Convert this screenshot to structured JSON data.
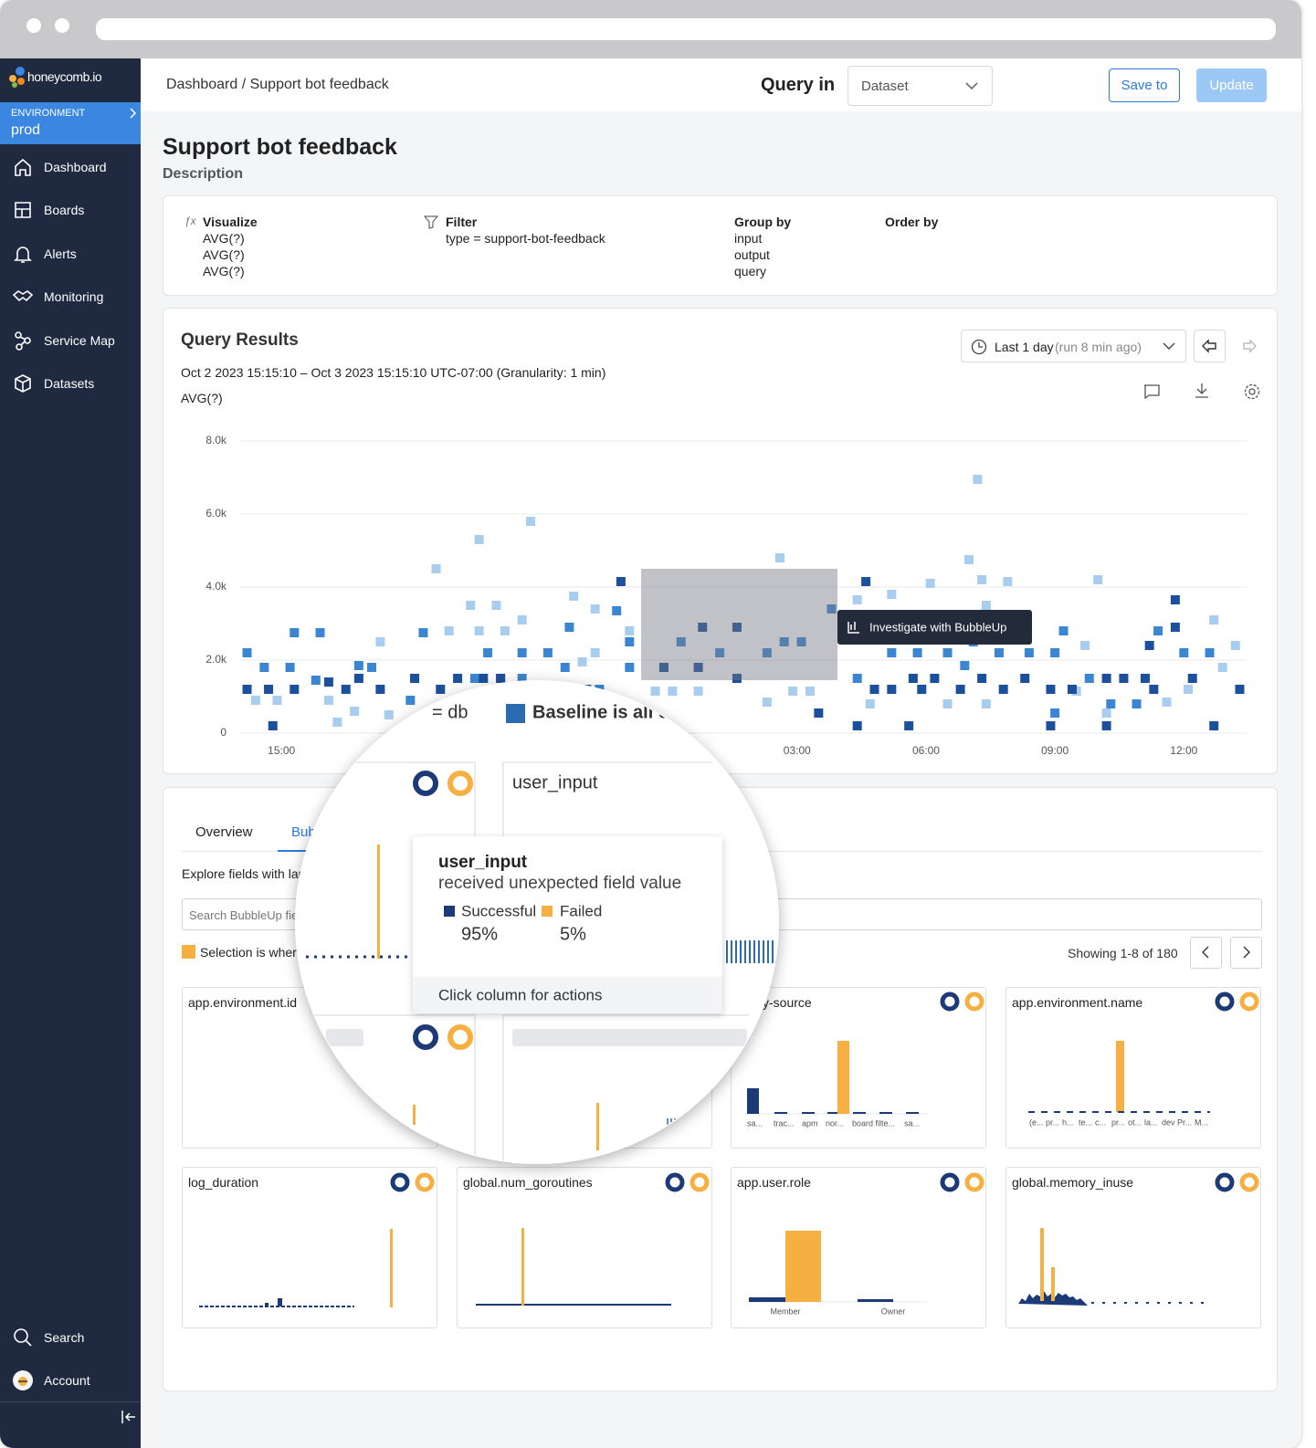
{
  "sidebar": {
    "logo": "honeycomb.io",
    "environment_label": "ENVIRONMENT",
    "environment": "prod",
    "nav": [
      "Dashboard",
      "Boards",
      "Alerts",
      "Monitoring",
      "Service Map",
      "Datasets"
    ],
    "bottom_nav": [
      "Search",
      "Account"
    ]
  },
  "header": {
    "breadcrumb": "Dashboard / Support bot feedback",
    "query_in": "Query in",
    "dataset": "Dataset",
    "save": "Save to",
    "update": "Update"
  },
  "page": {
    "title": "Support bot feedback",
    "description": "Description"
  },
  "query": {
    "visualize": {
      "label": "Visualize",
      "items": [
        "AVG(?)",
        "AVG(?)",
        "AVG(?)"
      ]
    },
    "filter": {
      "label": "Filter",
      "items": [
        "type = support-bot-feedback"
      ]
    },
    "group_by": {
      "label": "Group by",
      "items": [
        "input",
        "output",
        "query"
      ]
    },
    "order_by": {
      "label": "Order by"
    }
  },
  "results": {
    "title": "Query Results",
    "time_range": "Last 1 day",
    "run_info": "(run 8 min ago)",
    "range_text": "Oct 2 2023 15:15:10 – Oct 3 2023 15:15:10 UTC-07:00 (Granularity: 1 min)",
    "chart_label": "AVG(?)",
    "bubbleup_button": "Investigate with BubbleUp"
  },
  "chart_data": {
    "type": "scatter",
    "xlim": [
      14.04,
      37.46
    ],
    "xticks": [
      {
        "value": 15,
        "label": "15:00"
      },
      {
        "value": 27,
        "label": "03:00"
      },
      {
        "value": 30,
        "label": "06:00"
      },
      {
        "value": 33,
        "label": "09:00"
      },
      {
        "value": 36,
        "label": "12:00"
      }
    ],
    "ylim": [
      0,
      8000
    ],
    "yticks": [
      0,
      {
        "value": 2000,
        "label": "2.0k"
      },
      {
        "value": 4000,
        "label": "4.0k"
      },
      {
        "value": 6000,
        "label": "6.0k"
      },
      {
        "value": 8000,
        "label": "8.0k"
      }
    ],
    "grid": true,
    "series": [
      {
        "color": "#a8cdef",
        "x": [
          18.6,
          19.6,
          20.8,
          26.6,
          31.2,
          31.0,
          31.3,
          34.0,
          31.9,
          28.4,
          29.2,
          30.1,
          31.4,
          19.4,
          20.0,
          18.9,
          19.6,
          20.2,
          20.6,
          17.3,
          21.8,
          22.3,
          23.1,
          36.7,
          37.2,
          33.7,
          16.1,
          16.3,
          16.7,
          19.1,
          21.2,
          23.7,
          24.1,
          24.7,
          26.3,
          26.9,
          27.3,
          28.7,
          30.5,
          31.4,
          33.5,
          34.2,
          35.6,
          36.1,
          36.9,
          14.4,
          14.9,
          17.5,
          22.0,
          22.3
        ],
        "values": [
          4500,
          5300,
          5800,
          4800,
          6950,
          4750,
          4200,
          4200,
          4150,
          3650,
          3800,
          4100,
          3500,
          3500,
          3500,
          2800,
          2800,
          2800,
          3100,
          2500,
          3750,
          3400,
          2800,
          3100,
          2400,
          2400,
          900,
          300,
          600,
          850,
          1200,
          1150,
          1150,
          1150,
          850,
          1150,
          1150,
          800,
          800,
          800,
          1150,
          550,
          850,
          1200,
          1800,
          900,
          900,
          500,
          1950,
          2200
        ]
      },
      {
        "color": "#3b86d2",
        "x": [
          14.2,
          14.6,
          15.3,
          15.9,
          15.2,
          15.8,
          17.1,
          18.3,
          19.8,
          20.6,
          21.2,
          21.7,
          21.6,
          22.8,
          23.1,
          23.1,
          24.3,
          25.2,
          26.3,
          26.7,
          27.1,
          27.8,
          28.4,
          29.2,
          29.8,
          30.5,
          31.1,
          30.9,
          31.7,
          32.4,
          33.0,
          33.2,
          33.8,
          35.4,
          36.0,
          36.6,
          34.3,
          34.9,
          33.0,
          29.9,
          19.5,
          20.1,
          20.6,
          22.4,
          18.0,
          16.8
        ],
        "values": [
          2200,
          1800,
          2750,
          2750,
          1800,
          1450,
          1800,
          2750,
          2200,
          2200,
          2200,
          2900,
          1800,
          3350,
          2500,
          1800,
          2500,
          2200,
          2200,
          2500,
          2500,
          3400,
          1500,
          2200,
          2200,
          2200,
          2500,
          1850,
          2200,
          2200,
          2200,
          2800,
          1500,
          2800,
          2200,
          2200,
          800,
          800,
          550,
          2800,
          1500,
          1500,
          1500,
          1200,
          900,
          1850
        ]
      },
      {
        "color": "#1c4f9c",
        "x": [
          14.2,
          14.7,
          14.8,
          15.3,
          16.1,
          16.5,
          16.8,
          17.3,
          18.1,
          18.7,
          19.1,
          19.7,
          20.1,
          20.8,
          21.4,
          22.1,
          22.9,
          23.9,
          24.8,
          25.6,
          24.7,
          25.6,
          27.5,
          28.4,
          28.8,
          29.2,
          29.6,
          29.7,
          30.2,
          30.8,
          31.3,
          31.8,
          32.3,
          32.9,
          33.4,
          34.2,
          34.2,
          34.6,
          35.1,
          35.2,
          35.8,
          35.8,
          36.2,
          36.7,
          37.3,
          28.6,
          29.9,
          32.9,
          35.3
        ],
        "values": [
          1200,
          1200,
          200,
          1200,
          1400,
          1200,
          1500,
          1200,
          1500,
          1200,
          1500,
          1500,
          1500,
          1200,
          1200,
          1200,
          4150,
          1800,
          2900,
          2900,
          1800,
          1500,
          550,
          200,
          1200,
          1200,
          200,
          1500,
          1500,
          1200,
          1500,
          1200,
          1500,
          200,
          1200,
          200,
          1500,
          1500,
          1500,
          2400,
          3650,
          2900,
          1500,
          200,
          1200,
          4150,
          1200,
          1200,
          1200
        ]
      }
    ]
  },
  "bubbleup": {
    "tabs": [
      "Overview",
      "Bub"
    ],
    "explore": "Explore fields with lar",
    "search_placeholder": "Search BubbleUp fie",
    "selection": "Selection is wher",
    "showing": "Showing 1-8 of 180",
    "cards": [
      {
        "title": "app.environment.id"
      },
      {
        "title": "query-source",
        "labels": [
          "sa...",
          "trac...",
          "apm",
          "nor...",
          "board filte...",
          "sa..."
        ]
      },
      {
        "title": "app.environment.name",
        "labels": [
          "(e...",
          "pr...",
          "h...",
          "te...",
          "c...",
          "pr...",
          "ot...",
          "la...",
          "dev Pr...",
          "M..."
        ]
      },
      {
        "title": "log_duration"
      },
      {
        "title": "global.num_goroutines"
      },
      {
        "title": "app.user.role",
        "labels": [
          "Member",
          "Owner"
        ]
      },
      {
        "title": "global.memory_inuse"
      }
    ]
  },
  "lens": {
    "field_hint": "= db",
    "baseline": "Baseline is all c",
    "panel_title": "user_input",
    "tooltip": {
      "title": "user_input",
      "subtitle": "received unexpected field value",
      "successful": "Successful",
      "failed": "Failed",
      "successful_pct": "95%",
      "failed_pct": "5%",
      "footer": "Click column for actions"
    }
  }
}
